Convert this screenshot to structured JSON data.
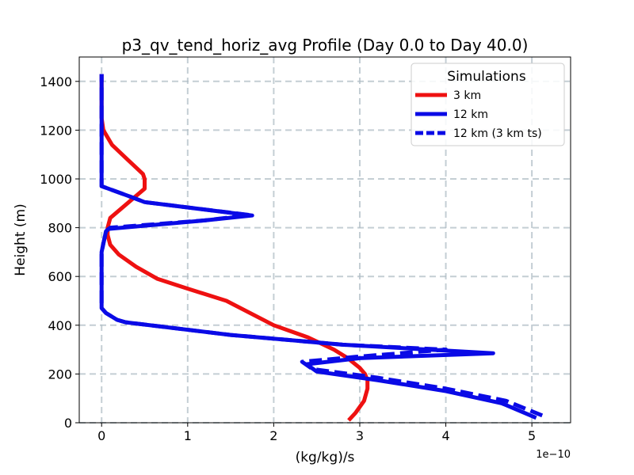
{
  "chart_data": {
    "type": "line",
    "title": "p3_qv_tend_horiz_avg Profile (Day 0.0 to Day 40.0)",
    "xlabel": "(kg/kg)/s",
    "ylabel": "Height (m)",
    "x_offset_label": "1e−10",
    "xlim": [
      -0.26,
      5.45
    ],
    "ylim": [
      0,
      1500
    ],
    "xticks": [
      0,
      1,
      2,
      3,
      4,
      5
    ],
    "xtick_labels": [
      "0",
      "1",
      "2",
      "3",
      "4",
      "5"
    ],
    "yticks": [
      0,
      200,
      400,
      600,
      800,
      1000,
      1200,
      1400
    ],
    "ytick_labels": [
      "0",
      "200",
      "400",
      "600",
      "800",
      "1000",
      "1200",
      "1400"
    ],
    "grid": true,
    "legend": {
      "title": "Simulations",
      "position": "top-right"
    },
    "series": [
      {
        "name": "3 km",
        "color": "#ee1111",
        "style": "solid",
        "points": [
          [
            2.87,
            10
          ],
          [
            2.95,
            40
          ],
          [
            3.05,
            90
          ],
          [
            3.09,
            140
          ],
          [
            3.09,
            175
          ],
          [
            3.06,
            200
          ],
          [
            3.0,
            225
          ],
          [
            2.86,
            265
          ],
          [
            2.7,
            300
          ],
          [
            2.4,
            350
          ],
          [
            2.0,
            400
          ],
          [
            1.45,
            500
          ],
          [
            1.0,
            550
          ],
          [
            0.65,
            590
          ],
          [
            0.4,
            640
          ],
          [
            0.2,
            690
          ],
          [
            0.1,
            730
          ],
          [
            0.07,
            770
          ],
          [
            0.07,
            800
          ],
          [
            0.1,
            840
          ],
          [
            0.3,
            900
          ],
          [
            0.5,
            960
          ],
          [
            0.5,
            1000
          ],
          [
            0.48,
            1020
          ],
          [
            0.3,
            1080
          ],
          [
            0.12,
            1140
          ],
          [
            0.02,
            1200
          ],
          [
            0.0,
            1250
          ],
          [
            0.0,
            1300
          ],
          [
            0.0,
            1430
          ]
        ]
      },
      {
        "name": "12 km",
        "color": "#0a0ae6",
        "style": "solid",
        "points": [
          [
            5.05,
            20
          ],
          [
            4.65,
            80
          ],
          [
            4.0,
            130
          ],
          [
            3.2,
            175
          ],
          [
            2.5,
            210
          ],
          [
            2.38,
            240
          ],
          [
            3.0,
            265
          ],
          [
            4.55,
            285
          ],
          [
            2.8,
            320
          ],
          [
            1.5,
            360
          ],
          [
            0.28,
            412
          ],
          [
            0.18,
            422
          ],
          [
            0.05,
            450
          ],
          [
            0.0,
            470
          ],
          [
            0.0,
            600
          ],
          [
            0.0,
            700
          ],
          [
            0.05,
            785
          ],
          [
            0.08,
            795
          ],
          [
            1.2,
            830
          ],
          [
            1.75,
            850
          ],
          [
            0.5,
            905
          ],
          [
            0.35,
            925
          ],
          [
            0.0,
            970
          ],
          [
            0.0,
            1020
          ],
          [
            0.0,
            1100
          ],
          [
            0.0,
            1250
          ],
          [
            0.0,
            1430
          ]
        ]
      },
      {
        "name": "12 km (3 km ts)",
        "color": "#0a0ae6",
        "style": "dashed",
        "points": [
          [
            5.12,
            30
          ],
          [
            4.7,
            90
          ],
          [
            4.0,
            140
          ],
          [
            3.2,
            185
          ],
          [
            2.45,
            220
          ],
          [
            2.33,
            250
          ],
          [
            2.95,
            270
          ],
          [
            4.0,
            300
          ],
          [
            2.8,
            320
          ],
          [
            1.5,
            360
          ],
          [
            0.28,
            412
          ],
          [
            0.18,
            422
          ],
          [
            0.05,
            450
          ],
          [
            0.0,
            470
          ],
          [
            0.0,
            600
          ],
          [
            0.0,
            700
          ],
          [
            0.05,
            785
          ],
          [
            0.1,
            800
          ],
          [
            1.2,
            830
          ],
          [
            1.72,
            852
          ],
          [
            0.5,
            905
          ],
          [
            0.35,
            925
          ],
          [
            0.0,
            970
          ],
          [
            0.0,
            1020
          ],
          [
            0.0,
            1100
          ],
          [
            0.0,
            1250
          ],
          [
            0.0,
            1430
          ]
        ]
      }
    ]
  }
}
